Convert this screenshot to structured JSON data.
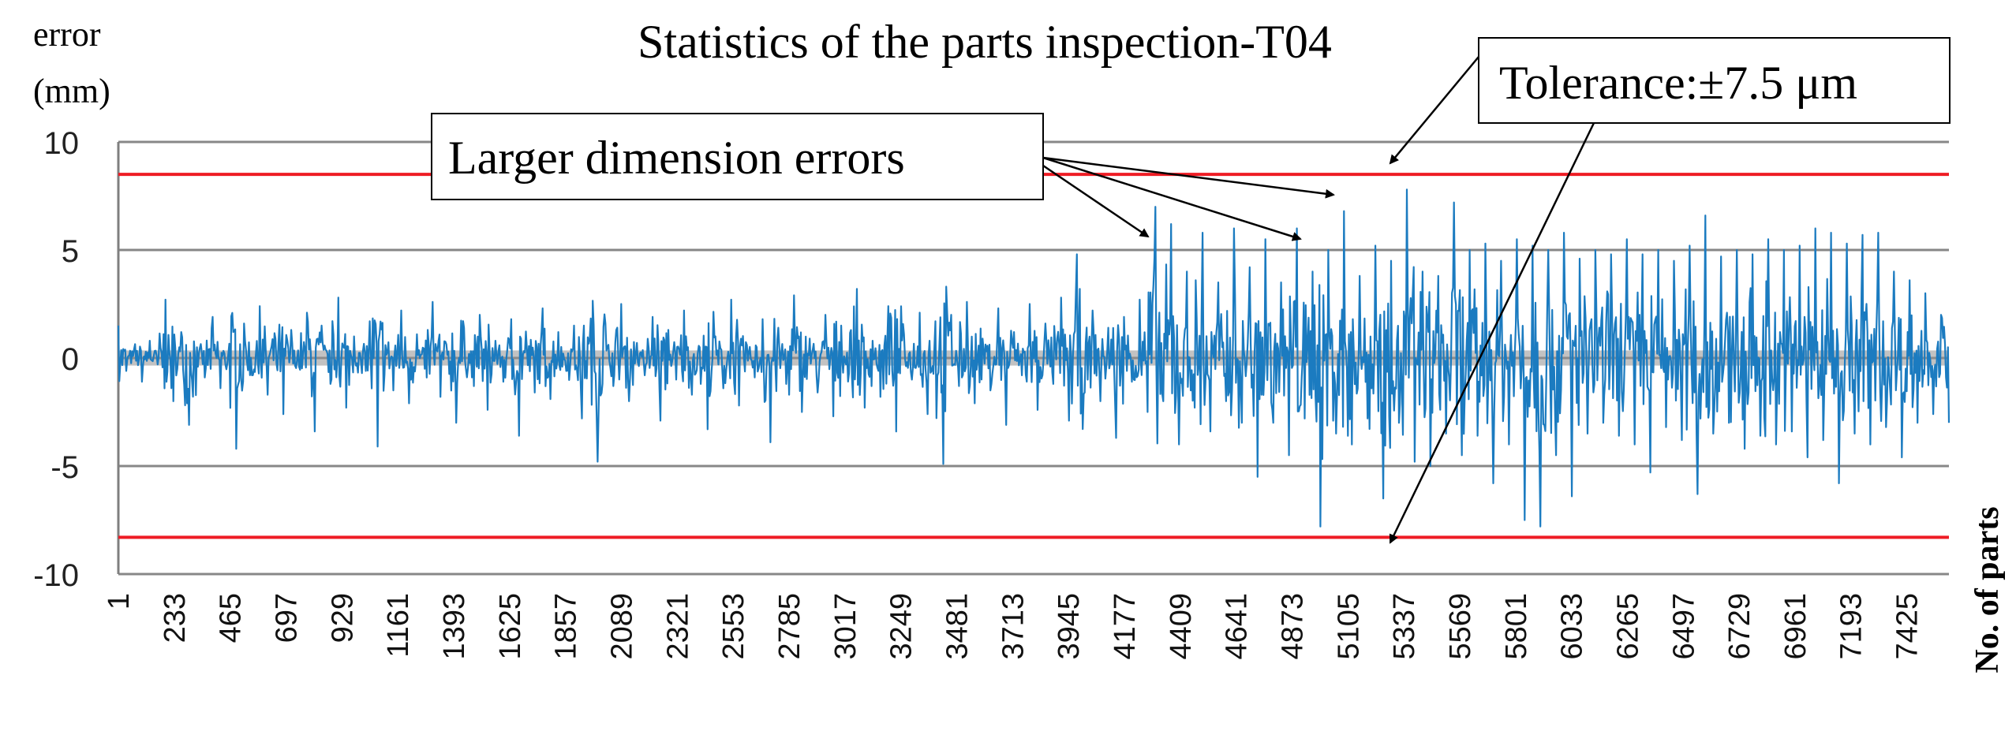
{
  "chart_data": {
    "type": "line",
    "title": "Statistics of the parts inspection-T04",
    "ylabel_line1": "error",
    "ylabel_line2": "(mm)",
    "xlabel": "No. of parts",
    "ylim": [
      -10,
      10
    ],
    "yticks": [
      10,
      5,
      0,
      -5,
      -10
    ],
    "xlim": [
      1,
      7600
    ],
    "xticks": [
      1,
      233,
      465,
      697,
      929,
      1161,
      1393,
      1625,
      1857,
      2089,
      2321,
      2553,
      2785,
      3017,
      3249,
      3481,
      3713,
      3945,
      4177,
      4409,
      4641,
      4873,
      5105,
      5337,
      5569,
      5801,
      6033,
      6265,
      6497,
      6729,
      6961,
      7193,
      7425
    ],
    "grid": true,
    "limits": [
      8.5,
      -8.3
    ],
    "series": [
      {
        "values": [
          1.5,
          -0.6,
          0.4,
          -1.1,
          0.8,
          -0.3,
          2.7,
          -2.0,
          1.2,
          -3.1,
          0.5,
          -0.9,
          1.9,
          -1.4,
          0.2,
          -4.2,
          1.6,
          -0.8,
          2.4,
          -1.7,
          0.9,
          -2.6,
          1.3,
          -0.4,
          2.1,
          -3.4,
          0.7,
          -1.2,
          2.8,
          -2.3,
          1.0,
          -0.7,
          1.7,
          -4.1,
          0.6,
          -1.5,
          2.2,
          -2.1,
          1.1,
          -0.5,
          2.6,
          -1.8,
          0.3,
          -3.0,
          1.4,
          -0.9,
          2.0,
          -2.4,
          0.8,
          -1.1,
          1.8,
          -3.6,
          0.4,
          -1.6,
          2.3,
          -1.9,
          1.2,
          -0.6,
          1.5,
          -2.8,
          0.9,
          -4.8,
          1.6,
          -1.3,
          2.5,
          -2.0,
          0.7,
          -0.8,
          1.9,
          -2.9,
          1.3,
          -1.0,
          2.2,
          -1.7,
          0.5,
          -3.3,
          1.0,
          -1.4,
          2.7,
          -2.2,
          0.6,
          -0.9,
          1.8,
          -3.9,
          1.4,
          -1.2,
          2.9,
          -2.5,
          0.9,
          -1.6,
          2.0,
          -2.7,
          1.5,
          -0.7,
          3.2,
          -2.3,
          0.8,
          -1.8,
          2.4,
          -3.4,
          1.1,
          -1.0,
          2.1,
          -2.6,
          1.7,
          -4.9,
          2.0,
          -1.3,
          2.6,
          -2.1,
          0.9,
          -1.5,
          2.3,
          -3.1,
          1.2,
          -0.8,
          2.5,
          -2.4,
          1.6,
          -1.2,
          2.8,
          -2.9,
          4.8,
          -1.6,
          2.2,
          -2.0,
          1.4,
          -3.7,
          1.9,
          -1.1,
          2.7,
          -2.5,
          7.0,
          -2.0,
          6.2,
          -4.0,
          4.0,
          -2.3,
          5.8,
          -3.4,
          3.5,
          -2.0,
          6.0,
          -3.0,
          4.2,
          -5.5,
          5.5,
          -3.0,
          3.5,
          -4.5,
          6.0,
          -2.8,
          4.0,
          -7.8,
          5.0,
          -3.5,
          6.8,
          -4.0,
          3.8,
          -2.8,
          5.2,
          -6.5,
          4.5,
          -3.0,
          7.8,
          -4.8,
          4.0,
          -5.0,
          3.8,
          -3.5,
          7.2,
          -4.5,
          5.0,
          -3.6,
          5.3,
          -5.8,
          4.5,
          -4.0,
          5.5,
          -7.5,
          5.2,
          -7.8,
          5.0,
          -4.5,
          5.8,
          -6.4,
          4.6,
          -3.5,
          5.0,
          -3.0,
          4.8,
          -3.6,
          5.5,
          -4.0,
          4.8,
          -5.3,
          5.0,
          -3.2,
          4.5,
          -3.8,
          5.2,
          -6.3,
          6.6,
          -3.5,
          4.7,
          -3.0,
          5.0,
          -4.2,
          4.8,
          -3.6,
          5.5,
          -4.0,
          5.0,
          -3.4,
          5.2,
          -4.6,
          6.0,
          -3.8,
          5.8,
          -5.8,
          5.3,
          -3.5,
          5.7,
          -4.0,
          5.8,
          -3.2,
          4.0,
          -4.6,
          3.6,
          -3.0,
          3.0,
          -2.6,
          2.0,
          -3.0
        ]
      }
    ],
    "annotations": {
      "box1": "Larger dimension errors",
      "box2": "Tolerance:±7.5 μm"
    }
  },
  "colors": {
    "series": "#1b7bc0",
    "limit": "#ee1c24",
    "grid": "#878787",
    "zero_band": "#8f8f8f",
    "axis": "#7f7f7f",
    "text": "#000000"
  }
}
